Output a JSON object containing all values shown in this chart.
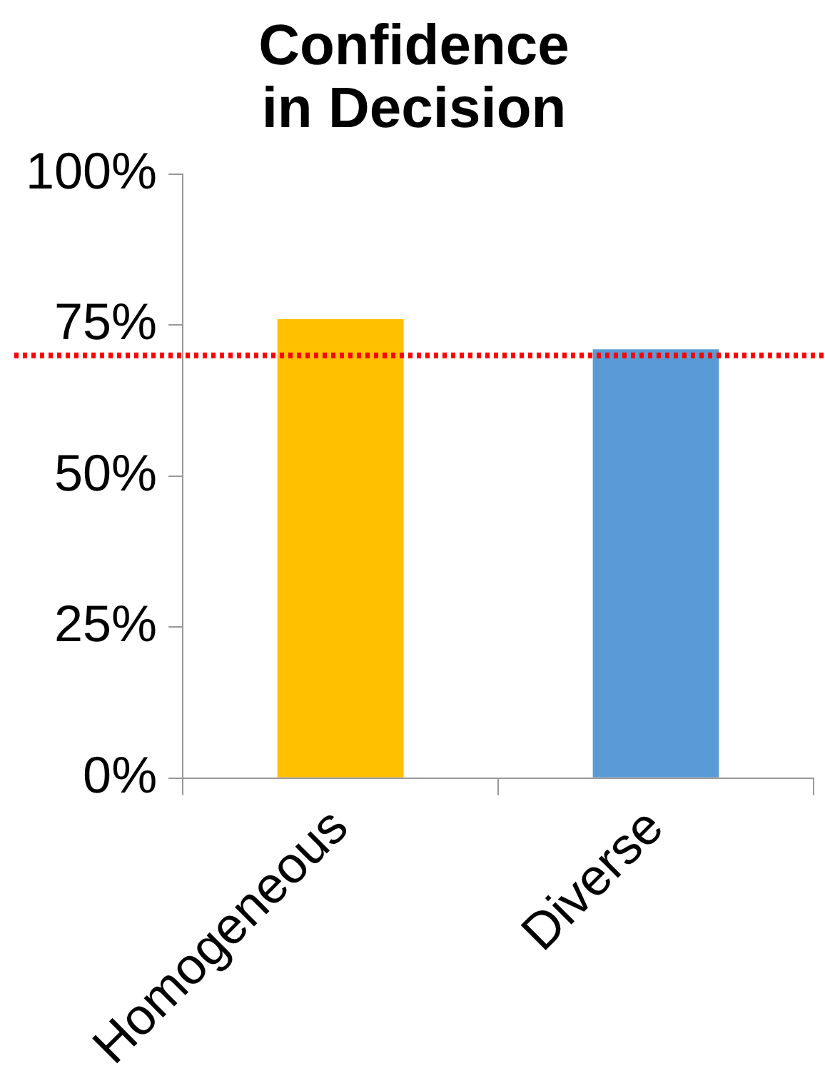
{
  "chart_data": {
    "type": "bar",
    "title": "Confidence\nin Decision",
    "categories": [
      "Homogeneous",
      "Diverse"
    ],
    "values": [
      76,
      71
    ],
    "colors": [
      "#ffc000",
      "#5b9bd5"
    ],
    "ylim": [
      0,
      100
    ],
    "yticks": [
      {
        "value": 0,
        "label": "0%"
      },
      {
        "value": 25,
        "label": "25%"
      },
      {
        "value": 50,
        "label": "50%"
      },
      {
        "value": 75,
        "label": "75%"
      },
      {
        "value": 100,
        "label": "100%"
      }
    ],
    "grid": false,
    "legend": false,
    "ref_lines": [
      {
        "axis": "y",
        "value": 70,
        "color": "#ff0000",
        "line_style": "dotted"
      }
    ]
  }
}
